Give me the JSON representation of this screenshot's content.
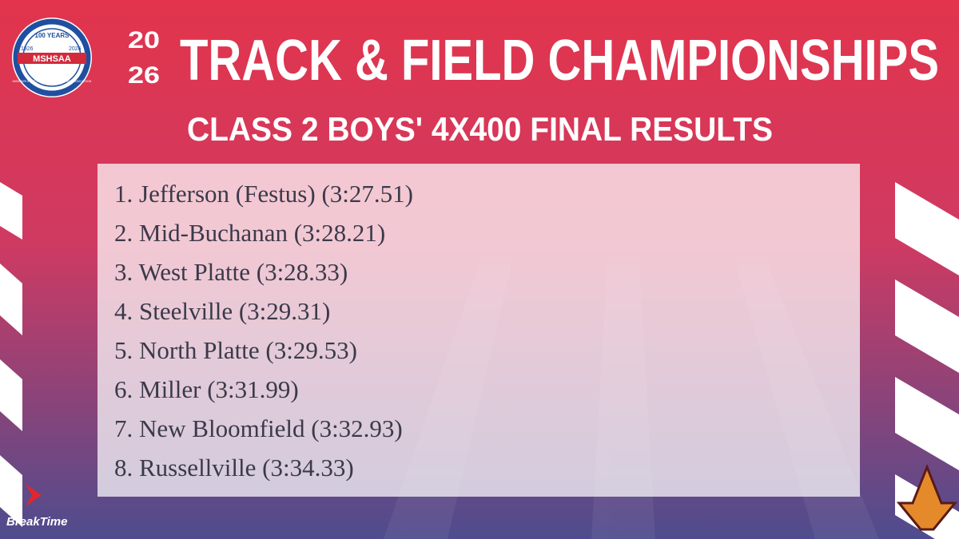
{
  "logo": {
    "top": "100 YEARS",
    "name": "MSHSAA",
    "left_year": "1926",
    "right_year": "2026",
    "ring": "MISSOURI STATE HIGH SCHOOL ACTIVITIES ASSOCIATION"
  },
  "header": {
    "year_lines": [
      "20",
      "26"
    ],
    "title": "TRACK & FIELD CHAMPIONSHIPS",
    "subtitle": "CLASS 2 BOYS' 4X400 FINAL RESULTS"
  },
  "results": [
    "1. Jefferson (Festus) (3:27.51)",
    "2. Mid-Buchanan (3:28.21)",
    "3. West Platte (3:28.33)",
    "4. Steelville (3:29.31)",
    "5. North Platte (3:29.53)",
    "6. Miller (3:31.99)",
    "7. New Bloomfield (3:32.93)",
    "8. Russellville (3:34.33)"
  ],
  "sponsor": "BreakTime"
}
